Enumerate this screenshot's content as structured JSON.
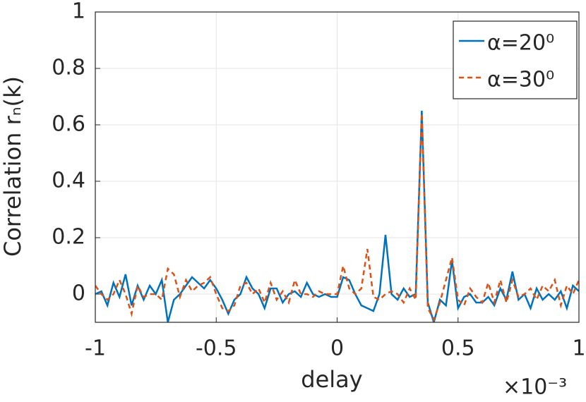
{
  "chart_data": {
    "type": "line",
    "y_label": "Correlation rₙ(k)",
    "x_label": "delay",
    "x_multiplier": "×10⁻³",
    "x": [
      -1,
      -0.975,
      -0.95,
      -0.925,
      -0.9,
      -0.875,
      -0.85,
      -0.825,
      -0.8,
      -0.775,
      -0.75,
      -0.725,
      -0.7,
      -0.675,
      -0.65,
      -0.625,
      -0.6,
      -0.575,
      -0.55,
      -0.525,
      -0.5,
      -0.475,
      -0.45,
      -0.425,
      -0.4,
      -0.375,
      -0.35,
      -0.325,
      -0.3,
      -0.275,
      -0.25,
      -0.225,
      -0.2,
      -0.175,
      -0.15,
      -0.125,
      -0.1,
      -0.075,
      -0.05,
      -0.025,
      0,
      0.025,
      0.05,
      0.075,
      0.1,
      0.125,
      0.15,
      0.175,
      0.2,
      0.225,
      0.25,
      0.275,
      0.3,
      0.325,
      0.35,
      0.375,
      0.4,
      0.425,
      0.45,
      0.475,
      0.5,
      0.525,
      0.55,
      0.575,
      0.6,
      0.625,
      0.65,
      0.675,
      0.7,
      0.725,
      0.75,
      0.775,
      0.8,
      0.825,
      0.85,
      0.875,
      0.9,
      0.925,
      0.95,
      0.975,
      1
    ],
    "series": [
      {
        "name": "α=20⁰",
        "color": "#0072bd",
        "line_style": "solid",
        "values": [
          0.0,
          0.01,
          -0.04,
          0.04,
          -0.01,
          0.07,
          -0.04,
          0.03,
          -0.02,
          0.03,
          0.0,
          0.05,
          -0.1,
          -0.02,
          0.0,
          0.03,
          0.06,
          0.04,
          0.02,
          0.05,
          0.02,
          -0.02,
          -0.07,
          -0.02,
          0.0,
          0.06,
          0.02,
          0.0,
          -0.05,
          0.02,
          0.02,
          -0.03,
          0.0,
          0.01,
          -0.01,
          0.04,
          0.0,
          -0.01,
          0.0,
          -0.01,
          -0.01,
          0.06,
          0.05,
          0.0,
          -0.04,
          -0.05,
          -0.06,
          0.0,
          0.21,
          0.0,
          -0.02,
          0.02,
          -0.01,
          0.0,
          0.65,
          -0.03,
          -0.1,
          -0.02,
          -0.04,
          0.12,
          -0.05,
          -0.01,
          0.0,
          -0.03,
          -0.03,
          -0.01,
          -0.04,
          0.02,
          -0.02,
          0.08,
          -0.02,
          0.0,
          -0.05,
          0.02,
          -0.02,
          0.0,
          -0.02,
          0.01,
          -0.05,
          0.03,
          0.01
        ]
      },
      {
        "name": "α=30⁰",
        "color": "#d95319",
        "line_style": "dashed",
        "values": [
          0.03,
          0.0,
          -0.02,
          0.0,
          0.05,
          0.0,
          -0.07,
          0.03,
          -0.01,
          0.0,
          0.0,
          -0.02,
          0.09,
          0.07,
          -0.01,
          0.05,
          0.01,
          0.03,
          0.04,
          0.06,
          0.0,
          -0.05,
          -0.06,
          -0.04,
          0.03,
          0.04,
          0.0,
          0.02,
          -0.03,
          0.04,
          -0.02,
          0.01,
          -0.03,
          0.05,
          0.0,
          0.0,
          -0.01,
          0.01,
          0.0,
          0.0,
          0.0,
          0.1,
          0.02,
          0.0,
          0.02,
          0.16,
          -0.01,
          -0.02,
          0.0,
          0.01,
          0.0,
          -0.03,
          0.02,
          -0.02,
          0.64,
          -0.05,
          -0.09,
          -0.03,
          0.05,
          0.13,
          -0.02,
          -0.04,
          0.02,
          -0.01,
          -0.03,
          0.04,
          -0.03,
          0.05,
          -0.03,
          0.05,
          -0.01,
          0.0,
          0.02,
          -0.02,
          0.03,
          0.01,
          0.05,
          -0.04,
          0.03,
          0.0,
          0.05
        ]
      }
    ],
    "xlim": [
      -1,
      1
    ],
    "xticks": [
      -1,
      -0.5,
      0,
      0.5,
      1
    ],
    "ylim": [
      -0.1,
      1
    ],
    "yticks": [
      0,
      0.2,
      0.4,
      0.6,
      0.8,
      1
    ],
    "grid": true,
    "legend_position": "northeast"
  }
}
